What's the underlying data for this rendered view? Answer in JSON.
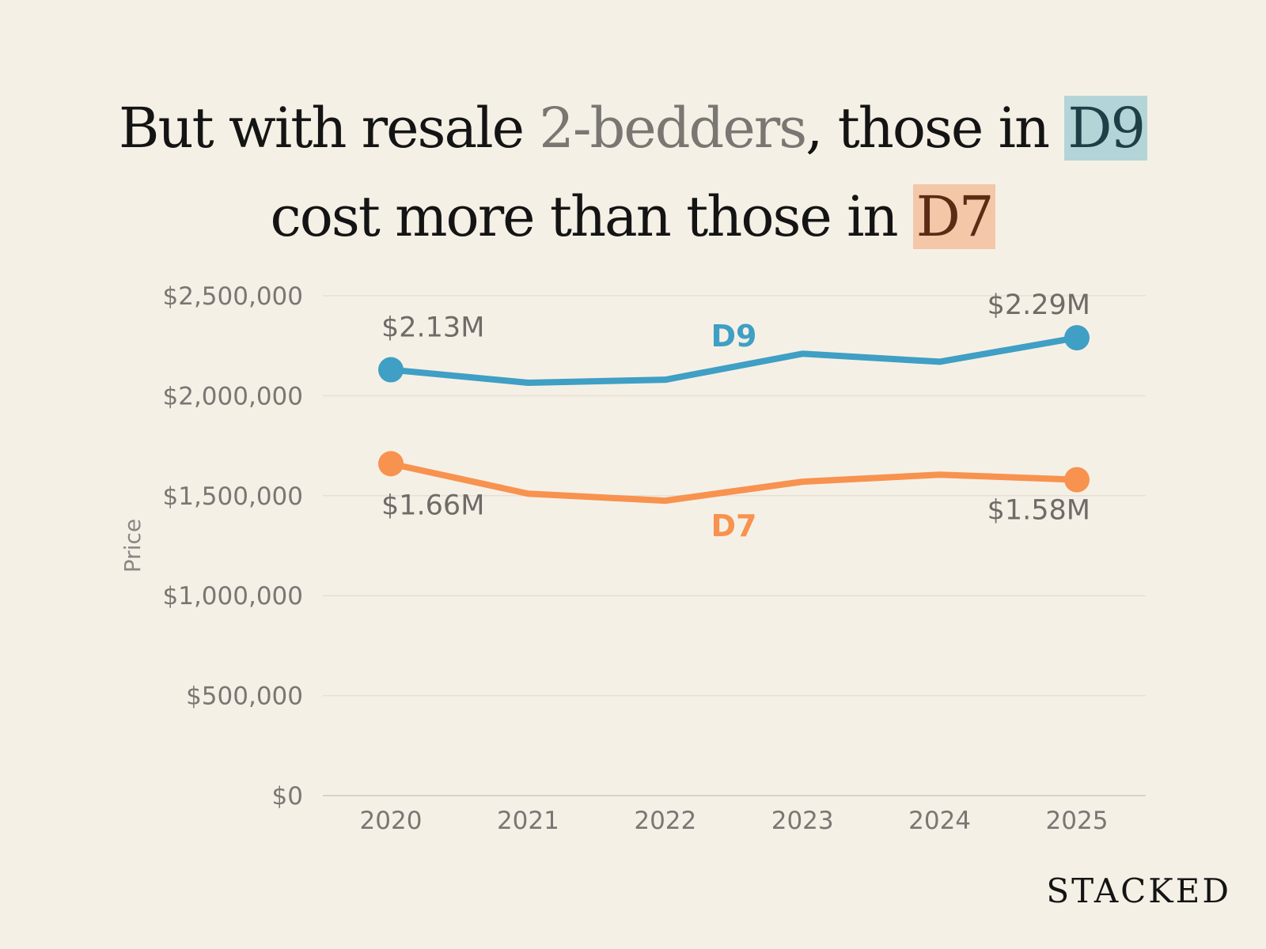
{
  "title": {
    "line1_a": "But with resale ",
    "line1_b": "2-bedders",
    "line1_c": ", those in ",
    "line1_d": "D9",
    "line2_a": "cost more than those in ",
    "line2_b": "D7",
    "d9_highlight": "#b3d5d8",
    "d7_highlight": "#f3c7a8",
    "d9_text": "#1d3f46",
    "d7_text": "#5a2c14"
  },
  "chart_data": {
    "type": "line",
    "categories": [
      "2020",
      "2021",
      "2022",
      "2023",
      "2024",
      "2025"
    ],
    "series": [
      {
        "name": "D9",
        "color": "#3f9fc4",
        "values": [
          2130000,
          2065000,
          2080000,
          2210000,
          2170000,
          2290000
        ],
        "end_labels": [
          "$2.13M",
          "$2.29M"
        ]
      },
      {
        "name": "D7",
        "color": "#f8924f",
        "values": [
          1660000,
          1510000,
          1475000,
          1570000,
          1605000,
          1580000
        ],
        "end_labels": [
          "$1.66M",
          "$1.58M"
        ]
      }
    ],
    "ylabel": "Price",
    "xlabel": "",
    "ylim": [
      0,
      2500000
    ],
    "yticks": [
      0,
      500000,
      1000000,
      1500000,
      2000000,
      2500000
    ],
    "ytick_labels": [
      "$0",
      "$500,000",
      "$1,000,000",
      "$1,500,000",
      "$2,000,000",
      "$2,500,000"
    ],
    "grid": true,
    "grid_color": "#e6e0d4",
    "tick_color": "#7a7672"
  },
  "brand": "STACKED"
}
